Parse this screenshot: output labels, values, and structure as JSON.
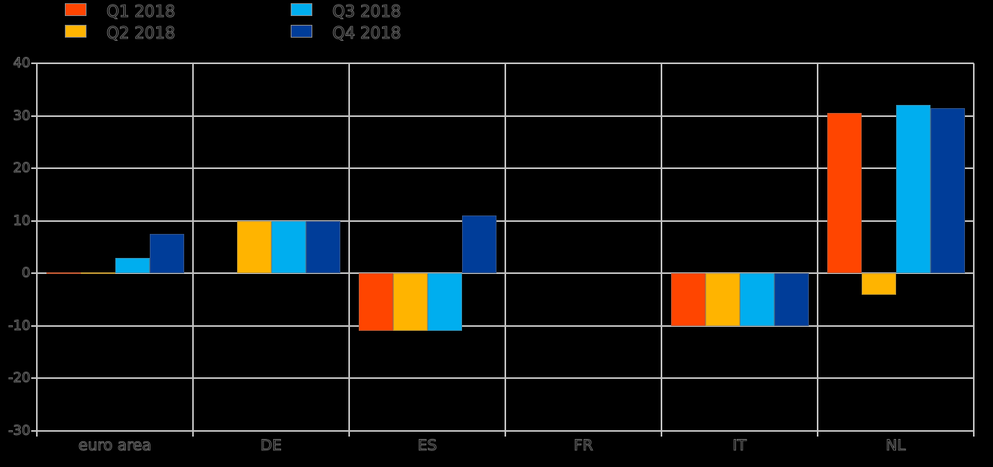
{
  "background_color": "#000000",
  "legend": {
    "position": "top-left",
    "items": [
      {
        "id": "q1",
        "label": "Q1 2018",
        "color": "#FF4500"
      },
      {
        "id": "q2",
        "label": "Q2 2018",
        "color": "#FFB400"
      },
      {
        "id": "q3",
        "label": "Q3 2018",
        "color": "#00AEEF"
      },
      {
        "id": "q4",
        "label": "Q4 2018",
        "color": "#003D99"
      }
    ]
  },
  "chart_data": {
    "type": "bar",
    "title": "",
    "xlabel": "",
    "ylabel": "",
    "categories": [
      "euro area",
      "DE",
      "ES",
      "FR",
      "IT",
      "NL"
    ],
    "series": [
      {
        "name": "Q1 2018",
        "color": "#FF4500",
        "values": [
          0.2,
          0,
          -11,
          0,
          -10,
          30.5
        ]
      },
      {
        "name": "Q2 2018",
        "color": "#FFB400",
        "values": [
          0.2,
          10,
          -11,
          0,
          -10,
          -4
        ]
      },
      {
        "name": "Q3 2018",
        "color": "#00AEEF",
        "values": [
          3,
          10,
          -11,
          0,
          -10,
          32
        ]
      },
      {
        "name": "Q4 2018",
        "color": "#003D99",
        "values": [
          7.5,
          10,
          11,
          0,
          -10,
          31.5
        ]
      }
    ],
    "ylim": [
      -30,
      40
    ],
    "yticks": [
      40,
      30,
      20,
      10,
      0,
      -10,
      -20,
      -30
    ],
    "grid": true,
    "gridline_color": "#c0c0c0",
    "legend_position": "top-left",
    "notes": "axis and legend text rendered as faint dark outlines on black background"
  }
}
